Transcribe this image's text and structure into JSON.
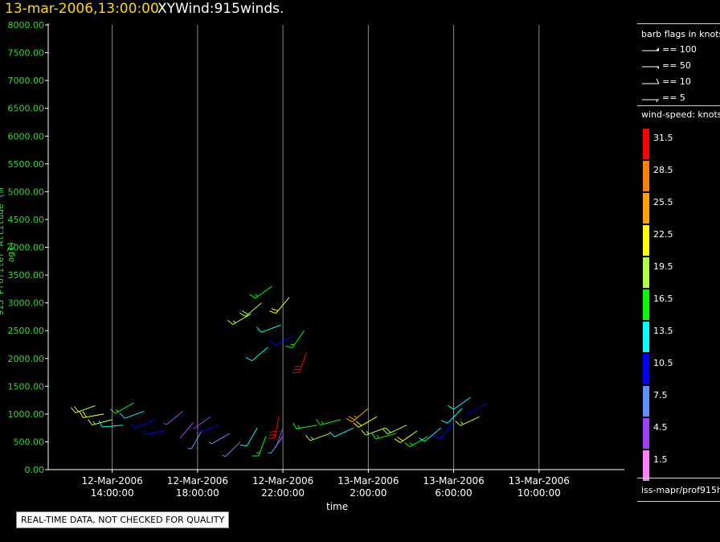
{
  "title": {
    "date": "13-mar-2006,13:00:00",
    "name": "XYWind:915winds."
  },
  "chart_data": {
    "type": "scatter",
    "ylabel": "915 Profiler Altitude (m agl)",
    "xlabel": "time",
    "ylim": [
      0,
      8000
    ],
    "xlim": [
      "2006-03-12T11:00",
      "2006-03-13T14:00"
    ],
    "y_ticks": [
      "0.00",
      "500.00",
      "1000.00",
      "1500.00",
      "2000.00",
      "2500.00",
      "3000.00",
      "3500.00",
      "4000.00",
      "4500.00",
      "5000.00",
      "5500.00",
      "6000.00",
      "6500.00",
      "7000.00",
      "7500.00",
      "8000.00"
    ],
    "x_ticks": [
      {
        "date": "12-Mar-2006",
        "time": "14:00:00"
      },
      {
        "date": "12-Mar-2006",
        "time": "18:00:00"
      },
      {
        "date": "12-Mar-2006",
        "time": "22:00:00"
      },
      {
        "date": "13-Mar-2006",
        "time": "2:00:00"
      },
      {
        "date": "13-Mar-2006",
        "time": "6:00:00"
      },
      {
        "date": "13-Mar-2006",
        "time": "10:00:00"
      }
    ],
    "x_tick_hours": [
      3,
      7,
      11,
      15,
      19,
      23
    ],
    "grid": "vertical",
    "series": [
      {
        "label": "barbs",
        "points": [
          {
            "t_hours": 2.2,
            "alt_m": 1150,
            "dir_deg": 250,
            "speed_kt": 20
          },
          {
            "t_hours": 2.6,
            "alt_m": 1000,
            "dir_deg": 260,
            "speed_kt": 22
          },
          {
            "t_hours": 3.0,
            "alt_m": 900,
            "dir_deg": 255,
            "speed_kt": 18
          },
          {
            "t_hours": 3.5,
            "alt_m": 800,
            "dir_deg": 265,
            "speed_kt": 14
          },
          {
            "t_hours": 4.0,
            "alt_m": 1200,
            "dir_deg": 240,
            "speed_kt": 16
          },
          {
            "t_hours": 4.5,
            "alt_m": 1050,
            "dir_deg": 250,
            "speed_kt": 12
          },
          {
            "t_hours": 5.0,
            "alt_m": 900,
            "dir_deg": 245,
            "speed_kt": 11
          },
          {
            "t_hours": 5.5,
            "alt_m": 700,
            "dir_deg": 260,
            "speed_kt": 9
          },
          {
            "t_hours": 6.3,
            "alt_m": 1050,
            "dir_deg": 230,
            "speed_kt": 5
          },
          {
            "t_hours": 6.8,
            "alt_m": 850,
            "dir_deg": 220,
            "speed_kt": 4
          },
          {
            "t_hours": 7.2,
            "alt_m": 700,
            "dir_deg": 210,
            "speed_kt": 6
          },
          {
            "t_hours": 7.6,
            "alt_m": 950,
            "dir_deg": 235,
            "speed_kt": 3
          },
          {
            "t_hours": 8.0,
            "alt_m": 800,
            "dir_deg": 250,
            "speed_kt": 10
          },
          {
            "t_hours": 8.5,
            "alt_m": 650,
            "dir_deg": 240,
            "speed_kt": 8
          },
          {
            "t_hours": 9.0,
            "alt_m": 500,
            "dir_deg": 225,
            "speed_kt": 7
          },
          {
            "t_hours": 9.8,
            "alt_m": 750,
            "dir_deg": 210,
            "speed_kt": 13
          },
          {
            "t_hours": 10.2,
            "alt_m": 600,
            "dir_deg": 200,
            "speed_kt": 15
          },
          {
            "t_hours": 10.8,
            "alt_m": 950,
            "dir_deg": 190,
            "speed_kt": 32
          },
          {
            "t_hours": 11.0,
            "alt_m": 750,
            "dir_deg": 200,
            "speed_kt": 4
          },
          {
            "t_hours": 11.0,
            "alt_m": 600,
            "dir_deg": 215,
            "speed_kt": 7
          },
          {
            "t_hours": 9.5,
            "alt_m": 2800,
            "dir_deg": 240,
            "speed_kt": 18
          },
          {
            "t_hours": 10.0,
            "alt_m": 3000,
            "dir_deg": 230,
            "speed_kt": 20
          },
          {
            "t_hours": 10.5,
            "alt_m": 3300,
            "dir_deg": 235,
            "speed_kt": 15
          },
          {
            "t_hours": 10.9,
            "alt_m": 2600,
            "dir_deg": 250,
            "speed_kt": 12
          },
          {
            "t_hours": 11.3,
            "alt_m": 3100,
            "dir_deg": 220,
            "speed_kt": 21
          },
          {
            "t_hours": 11.5,
            "alt_m": 2400,
            "dir_deg": 245,
            "speed_kt": 10
          },
          {
            "t_hours": 10.3,
            "alt_m": 2200,
            "dir_deg": 230,
            "speed_kt": 14
          },
          {
            "t_hours": 12.1,
            "alt_m": 2100,
            "dir_deg": 200,
            "speed_kt": 30
          },
          {
            "t_hours": 12.0,
            "alt_m": 2500,
            "dir_deg": 215,
            "speed_kt": 17
          },
          {
            "t_hours": 12.6,
            "alt_m": 800,
            "dir_deg": 260,
            "speed_kt": 17
          },
          {
            "t_hours": 13.2,
            "alt_m": 650,
            "dir_deg": 250,
            "speed_kt": 19
          },
          {
            "t_hours": 13.7,
            "alt_m": 900,
            "dir_deg": 255,
            "speed_kt": 15
          },
          {
            "t_hours": 14.3,
            "alt_m": 750,
            "dir_deg": 245,
            "speed_kt": 14
          },
          {
            "t_hours": 15.0,
            "alt_m": 1100,
            "dir_deg": 230,
            "speed_kt": 26
          },
          {
            "t_hours": 15.4,
            "alt_m": 950,
            "dir_deg": 240,
            "speed_kt": 22
          },
          {
            "t_hours": 15.8,
            "alt_m": 750,
            "dir_deg": 250,
            "speed_kt": 18
          },
          {
            "t_hours": 16.3,
            "alt_m": 650,
            "dir_deg": 255,
            "speed_kt": 16
          },
          {
            "t_hours": 16.8,
            "alt_m": 800,
            "dir_deg": 245,
            "speed_kt": 20
          },
          {
            "t_hours": 17.3,
            "alt_m": 700,
            "dir_deg": 235,
            "speed_kt": 23
          },
          {
            "t_hours": 17.8,
            "alt_m": 600,
            "dir_deg": 240,
            "speed_kt": 15
          },
          {
            "t_hours": 18.4,
            "alt_m": 750,
            "dir_deg": 230,
            "speed_kt": 12
          },
          {
            "t_hours": 19.0,
            "alt_m": 850,
            "dir_deg": 220,
            "speed_kt": 10
          },
          {
            "t_hours": 19.4,
            "alt_m": 1100,
            "dir_deg": 225,
            "speed_kt": 14
          },
          {
            "t_hours": 19.8,
            "alt_m": 1300,
            "dir_deg": 235,
            "speed_kt": 13
          },
          {
            "t_hours": 20.2,
            "alt_m": 950,
            "dir_deg": 245,
            "speed_kt": 19
          },
          {
            "t_hours": 20.6,
            "alt_m": 1200,
            "dir_deg": 240,
            "speed_kt": 9
          }
        ]
      }
    ]
  },
  "legend": {
    "flag_title": "barb flags in knots",
    "flags": [
      {
        "label": "== 100",
        "knots": 100
      },
      {
        "label": "== 50",
        "knots": 50
      },
      {
        "label": "== 10",
        "knots": 10
      },
      {
        "label": "== 5",
        "knots": 5
      }
    ],
    "ws_title": "wind-speed: knots",
    "ws_bins": [
      {
        "label": "31.5",
        "color": "#ff0000"
      },
      {
        "label": "28.5",
        "color": "#ff8000"
      },
      {
        "label": "25.5",
        "color": "#ffa000"
      },
      {
        "label": "22.5",
        "color": "#ffff00"
      },
      {
        "label": "19.5",
        "color": "#b0ff40"
      },
      {
        "label": "16.5",
        "color": "#00ff00"
      },
      {
        "label": "13.5",
        "color": "#00ffff"
      },
      {
        "label": "10.5",
        "color": "#0000ff"
      },
      {
        "label": "7.5",
        "color": "#6090ff"
      },
      {
        "label": "4.5",
        "color": "#a040ff"
      },
      {
        "label": "1.5",
        "color": "#ff80ff"
      }
    ],
    "footer": "iss-mapr/prof915h"
  },
  "quality_note": "REAL-TIME DATA, NOT CHECKED FOR QUALITY"
}
